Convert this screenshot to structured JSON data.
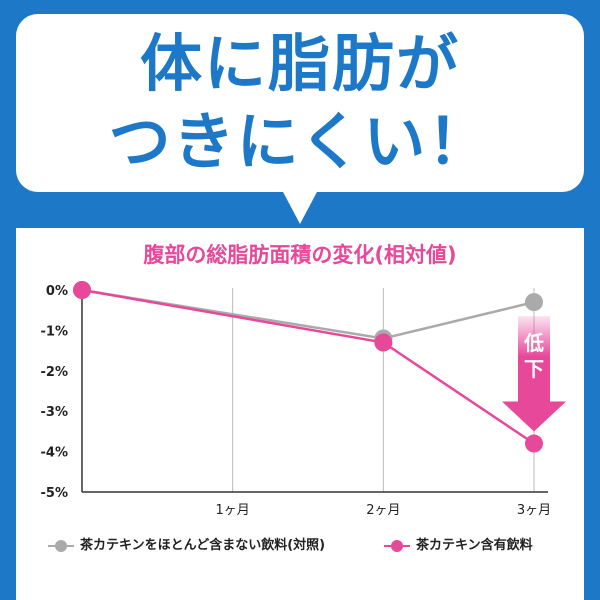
{
  "headline": {
    "line1": "体に脂肪が",
    "line2": "つきにくい！"
  },
  "colors": {
    "background": "#1e78c8",
    "headline": "#1e78c8",
    "control": "#aaaaaa",
    "catechin": "#e8489a",
    "arrow": "#e8489a"
  },
  "chart_data": {
    "type": "line",
    "title": "腹部の総脂肪面積の変化(相対値)",
    "xlabel": "",
    "ylabel": "",
    "x": [
      0,
      1,
      2,
      3
    ],
    "x_tick_labels": [
      "",
      "1ヶ月",
      "2ヶ月",
      "3ヶ月"
    ],
    "y_tick_labels": [
      "0%",
      "-1%",
      "-2%",
      "-3%",
      "-4%",
      "-5%"
    ],
    "ylim": [
      -5,
      0
    ],
    "grid": "vertical",
    "legend_position": "bottom",
    "series": [
      {
        "name": "茶カテキンをほとんど含まない飲料(対照)",
        "x": [
          0,
          2,
          3
        ],
        "values": [
          0,
          -1.2,
          -0.3
        ],
        "color": "#aaaaaa"
      },
      {
        "name": "茶カテキン含有飲料",
        "x": [
          0,
          2,
          3
        ],
        "values": [
          0,
          -1.3,
          -3.8
        ],
        "color": "#e8489a"
      }
    ],
    "annotation": {
      "label": "低下",
      "x": 3,
      "from": -0.3,
      "to": -3.8
    }
  }
}
